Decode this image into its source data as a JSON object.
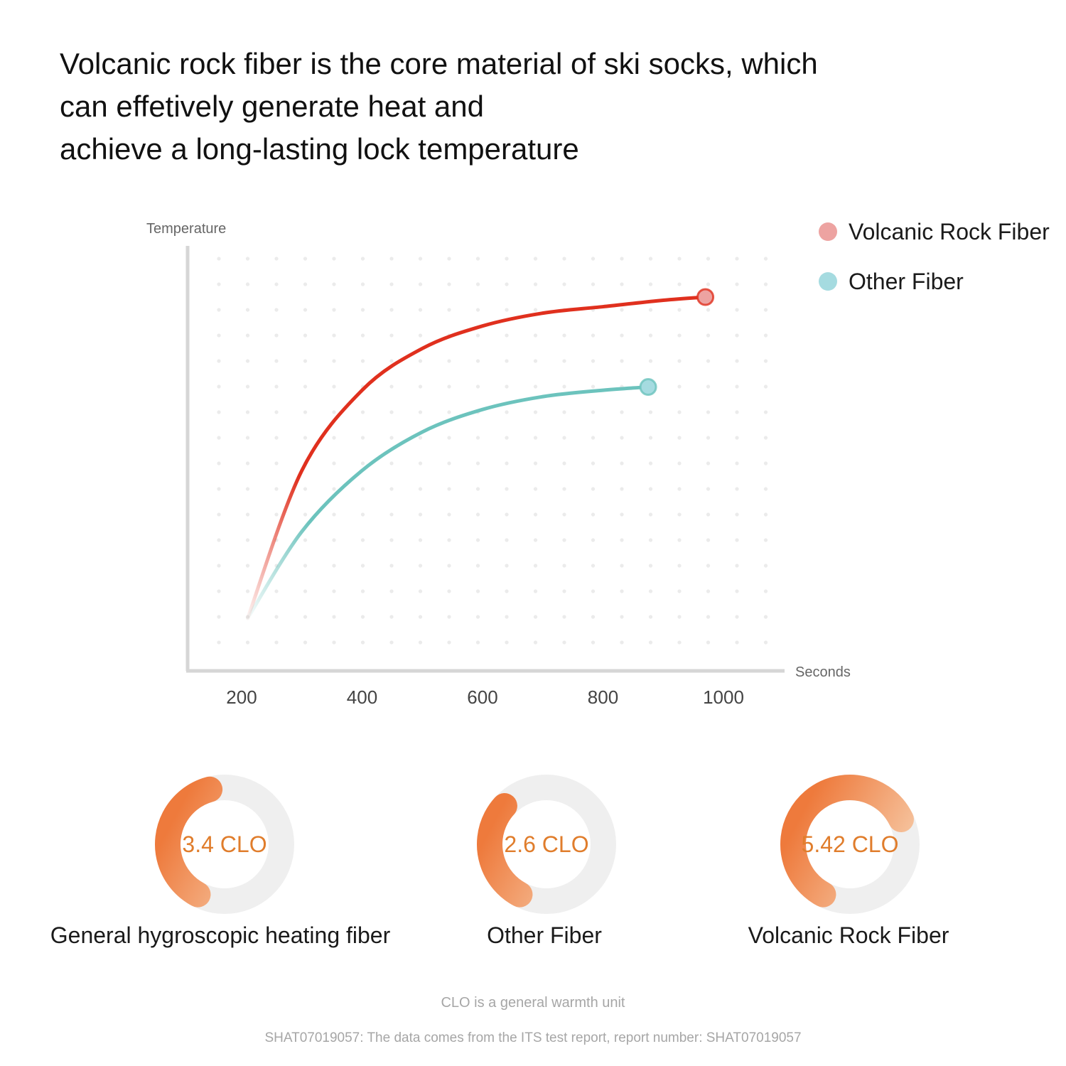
{
  "headline": {
    "line1": "Volcanic rock fiber is the core material of ski socks, which",
    "line2": "can effetively generate heat and",
    "line3": "achieve a long-lasting lock temperature"
  },
  "chart_data": {
    "type": "line",
    "ylabel": "Temperature",
    "xlabel": "Seconds",
    "x_ticks": [
      200,
      400,
      600,
      800,
      1000
    ],
    "xlim": [
      100,
      1110
    ],
    "grid": "dotted",
    "legend_placement": "top-right",
    "series": [
      {
        "name": "Volcanic Rock Fiber",
        "color": "#e0301e",
        "legend_color": "#eda3a1",
        "x": [
          210,
          300,
          400,
          500,
          600,
          700,
          800,
          900,
          970
        ],
        "y": [
          0.0,
          0.46,
          0.71,
          0.84,
          0.91,
          0.95,
          0.97,
          0.99,
          1.0
        ]
      },
      {
        "name": "Other Fiber",
        "color": "#6cc3bd",
        "legend_color": "#a5dbe0",
        "x": [
          210,
          300,
          400,
          500,
          600,
          700,
          800,
          875
        ],
        "y": [
          0.0,
          0.27,
          0.46,
          0.58,
          0.65,
          0.69,
          0.71,
          0.72
        ]
      }
    ]
  },
  "clo": {
    "items": [
      {
        "value": "3.4  CLO",
        "label": "General hygroscopic heating fiber",
        "fill": 0.38
      },
      {
        "value": "2.6  CLO",
        "label": "Other Fiber",
        "fill": 0.29
      },
      {
        "value": "5.42 CLO",
        "label": "Volcanic Rock Fiber",
        "fill": 0.6
      }
    ],
    "accent_color": "#ee7a3c",
    "track_color": "#efefef"
  },
  "footer": {
    "unit_note": "CLO is a general warmth unit",
    "source_note": "SHAT07019057: The data comes from the ITS test report, report number: SHAT07019057"
  }
}
